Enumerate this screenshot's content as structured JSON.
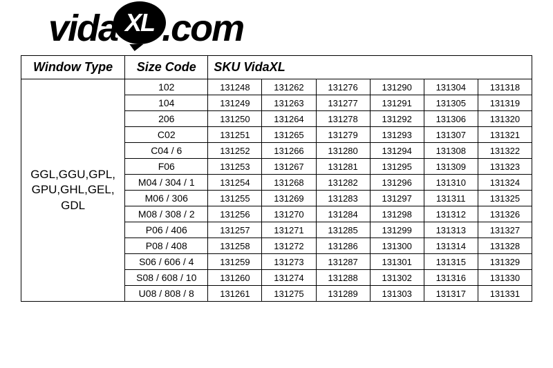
{
  "logo": {
    "prefix": "vida",
    "bubble": "XL",
    "suffix": ".com"
  },
  "table": {
    "headers": {
      "window_type": "Window Type",
      "size_code": "Size Code",
      "sku": "SKU VidaXL"
    },
    "window_type_label": "GGL,GGU,GPL,\nGPU,GHL,GEL,\nGDL",
    "columns": [
      "window_type",
      "size_code",
      "sku1",
      "sku2",
      "sku3",
      "sku4",
      "sku5",
      "sku6"
    ],
    "rows": [
      {
        "size": "102",
        "skus": [
          "131248",
          "131262",
          "131276",
          "131290",
          "131304",
          "131318"
        ]
      },
      {
        "size": "104",
        "skus": [
          "131249",
          "131263",
          "131277",
          "131291",
          "131305",
          "131319"
        ]
      },
      {
        "size": "206",
        "skus": [
          "131250",
          "131264",
          "131278",
          "131292",
          "131306",
          "131320"
        ]
      },
      {
        "size": "C02",
        "skus": [
          "131251",
          "131265",
          "131279",
          "131293",
          "131307",
          "131321"
        ]
      },
      {
        "size": "C04 / 6",
        "skus": [
          "131252",
          "131266",
          "131280",
          "131294",
          "131308",
          "131322"
        ]
      },
      {
        "size": "F06",
        "skus": [
          "131253",
          "131267",
          "131281",
          "131295",
          "131309",
          "131323"
        ]
      },
      {
        "size": "M04 / 304 / 1",
        "skus": [
          "131254",
          "131268",
          "131282",
          "131296",
          "131310",
          "131324"
        ]
      },
      {
        "size": "M06 / 306",
        "skus": [
          "131255",
          "131269",
          "131283",
          "131297",
          "131311",
          "131325"
        ]
      },
      {
        "size": "M08 / 308 / 2",
        "skus": [
          "131256",
          "131270",
          "131284",
          "131298",
          "131312",
          "131326"
        ]
      },
      {
        "size": "P06 / 406",
        "skus": [
          "131257",
          "131271",
          "131285",
          "131299",
          "131313",
          "131327"
        ]
      },
      {
        "size": "P08 / 408",
        "skus": [
          "131258",
          "131272",
          "131286",
          "131300",
          "131314",
          "131328"
        ]
      },
      {
        "size": "S06 / 606 / 4",
        "skus": [
          "131259",
          "131273",
          "131287",
          "131301",
          "131315",
          "131329"
        ]
      },
      {
        "size": "S08 / 608 / 10",
        "skus": [
          "131260",
          "131274",
          "131288",
          "131302",
          "131316",
          "131330"
        ]
      },
      {
        "size": "U08 / 808 / 8",
        "skus": [
          "131261",
          "131275",
          "131289",
          "131303",
          "131317",
          "131331"
        ]
      }
    ],
    "styling": {
      "border_color": "#000000",
      "background_color": "#ffffff",
      "header_font_style": "italic bold",
      "header_font_size_pt": 18,
      "body_font_size_pt": 14,
      "rowhead_font_size_pt": 17
    }
  }
}
